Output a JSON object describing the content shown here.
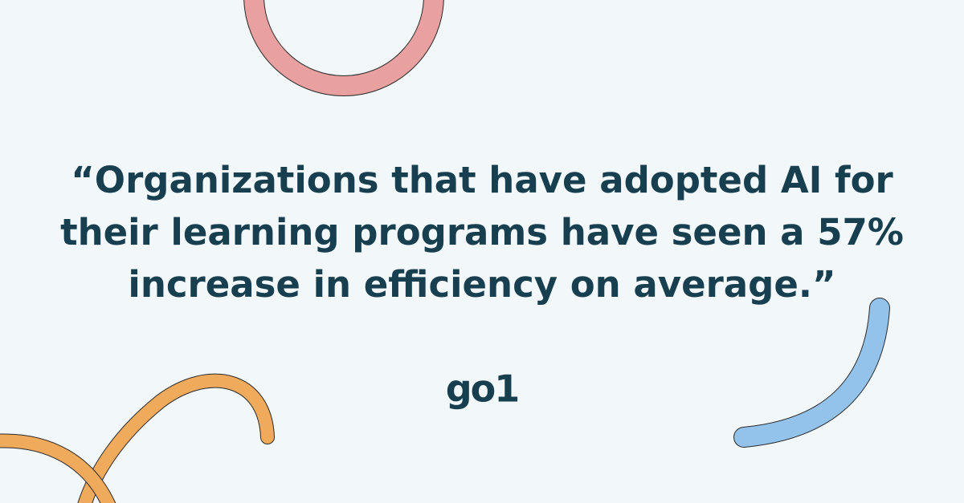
{
  "quote": {
    "lines": [
      "“Organizations that have adopted AI for",
      "their learning programs have seen a 57%",
      "increase in efficiency on average.”"
    ]
  },
  "logo": {
    "text": "go1"
  }
}
